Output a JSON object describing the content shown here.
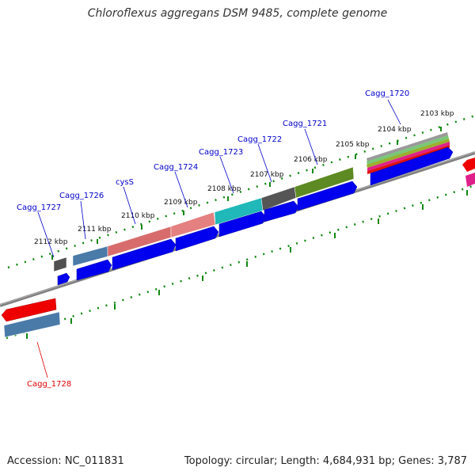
{
  "title": "Chloroflexus aggregans DSM 9485, complete genome",
  "footer": {
    "accession": "Accession: NC_011831",
    "summary": "Topology: circular; Length: 4,684,931 bp; Genes: 3,787"
  },
  "ruler_labels": [
    "2103 kbp",
    "2104 kbp",
    "2105 kbp",
    "2106 kbp",
    "2107 kbp",
    "2108 kbp",
    "2109 kbp",
    "2110 kbp",
    "2111 kbp",
    "2112 kbp"
  ],
  "gene_labels": {
    "cagg_1720": "Cagg_1720",
    "cagg_1721": "Cagg_1721",
    "cagg_1722": "Cagg_1722",
    "cagg_1723": "Cagg_1723",
    "cagg_1724": "Cagg_1724",
    "cyss": "cysS",
    "cagg_1726": "Cagg_1726",
    "cagg_1727": "Cagg_1727",
    "cagg_1728": "Cagg_1728"
  },
  "colors": {
    "forward_label": "#0000cc",
    "reverse_label": "#dd0000",
    "cds": "#0000ee",
    "reverse_cds": "#ee0000",
    "backbone": "#808080",
    "ruler_ticks": "#118811"
  }
}
